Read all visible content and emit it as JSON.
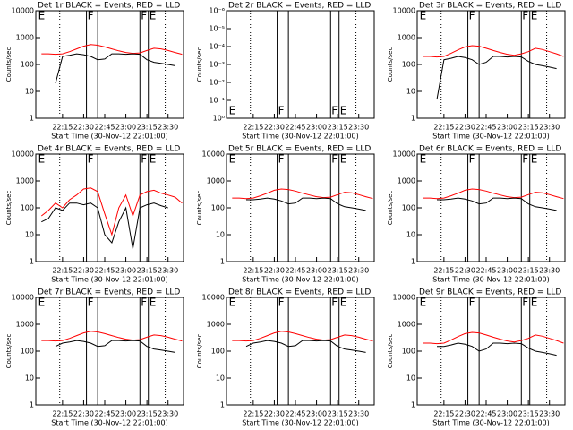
{
  "chart_data": [
    {
      "type": "line",
      "title": "Det 1r BLACK = Events, RED = LLD",
      "xlabel": "Start Time (30-Nov-12 22:01:00)",
      "ylabel": "Counts/sec",
      "x": [
        "22:00",
        "22:05",
        "22:10",
        "22:15",
        "22:20",
        "22:25",
        "22:30",
        "22:35",
        "22:40",
        "22:45",
        "22:50",
        "22:55",
        "23:00",
        "23:05",
        "23:10",
        "23:15",
        "23:20",
        "23:25",
        "23:30",
        "23:35",
        "23:40"
      ],
      "xlim": [
        "21:56",
        "23:41"
      ],
      "xticks": [
        "22:15",
        "22:30",
        "22:45",
        "23:00",
        "23:15",
        "23:30"
      ],
      "ylim": [
        1,
        10000
      ],
      "yticks": [
        1,
        10,
        100,
        1000,
        10000
      ],
      "log_y": true,
      "series": [
        {
          "color": "#ff0000",
          "values": [
            250,
            250,
            240,
            250,
            300,
            380,
            480,
            550,
            520,
            450,
            380,
            320,
            280,
            260,
            270,
            330,
            400,
            380,
            330,
            280,
            240
          ]
        },
        {
          "color": "#000000",
          "values": [
            null,
            null,
            20,
            200,
            220,
            250,
            230,
            200,
            150,
            160,
            250,
            250,
            240,
            250,
            240,
            150,
            120,
            110,
            100,
            90,
            null
          ]
        }
      ],
      "dotted_lines": [
        "22:13",
        "23:28"
      ],
      "solid_lines": [
        "22:32",
        "22:40",
        "23:10",
        "23:16"
      ],
      "annotations": [
        {
          "x": "21:57",
          "label": "E"
        },
        {
          "x": "22:32",
          "label": "F"
        },
        {
          "x": "23:10",
          "label": "F"
        },
        {
          "x": "23:16",
          "label": "E"
        }
      ],
      "annotation_position": "top"
    },
    {
      "type": "line",
      "title": "Det 2r BLACK = Events, RED = LLD",
      "xlabel": "Start Time (30-Nov-12 22:01:00)",
      "ylabel": "Counts/sec",
      "x": [],
      "xlim": [
        "21:56",
        "23:41"
      ],
      "xticks": [
        "22:15",
        "22:30",
        "22:45",
        "23:00",
        "23:15",
        "23:30"
      ],
      "ylim": [
        1,
        1e-06
      ],
      "yticks": [
        {
          "value": 1,
          "label": "10⁰"
        },
        {
          "value": 0.1,
          "label": "10⁻¹"
        },
        {
          "value": 0.01,
          "label": "10⁻²"
        },
        {
          "value": 0.001,
          "label": "10⁻³"
        },
        {
          "value": 0.0001,
          "label": "10⁻⁴"
        },
        {
          "value": 1e-05,
          "label": "10⁻⁵"
        },
        {
          "value": 1e-06,
          "label": "10⁻⁶"
        }
      ],
      "log_y": true,
      "series": [],
      "dotted_lines": [
        "22:13",
        "23:28"
      ],
      "solid_lines": [
        "22:32",
        "22:40",
        "23:10",
        "23:16"
      ],
      "annotations": [
        {
          "x": "21:57",
          "label": "E"
        },
        {
          "x": "22:32",
          "label": "F"
        },
        {
          "x": "23:10",
          "label": "F"
        },
        {
          "x": "23:16",
          "label": "E"
        }
      ],
      "annotation_position": "bottom"
    },
    {
      "type": "line",
      "title": "Det 3r BLACK = Events, RED = LLD",
      "xlabel": "Start Time (30-Nov-12 22:01:00)",
      "ylabel": "Counts/sec",
      "x": [
        "22:00",
        "22:05",
        "22:10",
        "22:15",
        "22:20",
        "22:25",
        "22:30",
        "22:35",
        "22:40",
        "22:45",
        "22:50",
        "22:55",
        "23:00",
        "23:05",
        "23:10",
        "23:15",
        "23:20",
        "23:25",
        "23:30",
        "23:35",
        "23:40"
      ],
      "xlim": [
        "21:56",
        "23:41"
      ],
      "xticks": [
        "22:15",
        "22:30",
        "22:45",
        "23:00",
        "23:15",
        "23:30"
      ],
      "ylim": [
        1,
        10000
      ],
      "yticks": [
        1,
        10,
        100,
        1000,
        10000
      ],
      "log_y": true,
      "series": [
        {
          "color": "#ff0000",
          "values": [
            200,
            200,
            190,
            200,
            260,
            350,
            450,
            500,
            480,
            400,
            330,
            280,
            240,
            220,
            250,
            300,
            400,
            360,
            300,
            250,
            200
          ]
        },
        {
          "color": "#000000",
          "values": [
            null,
            null,
            5,
            150,
            170,
            200,
            180,
            150,
            100,
            120,
            200,
            200,
            190,
            200,
            190,
            130,
            100,
            90,
            80,
            70,
            null
          ]
        }
      ],
      "dotted_lines": [
        "22:13",
        "23:28"
      ],
      "solid_lines": [
        "22:32",
        "22:40",
        "23:10",
        "23:16"
      ],
      "annotations": [
        {
          "x": "21:57",
          "label": "E"
        },
        {
          "x": "22:32",
          "label": "F"
        },
        {
          "x": "23:10",
          "label": "F"
        },
        {
          "x": "23:16",
          "label": "E"
        }
      ],
      "annotation_position": "top"
    },
    {
      "type": "line",
      "title": "Det 4r BLACK = Events, RED = LLD",
      "xlabel": "Start Time (30-Nov-12 22:01:00)",
      "ylabel": "Counts/sec",
      "x": [
        "22:00",
        "22:05",
        "22:10",
        "22:15",
        "22:20",
        "22:25",
        "22:30",
        "22:35",
        "22:40",
        "22:45",
        "22:50",
        "22:55",
        "23:00",
        "23:05",
        "23:10",
        "23:15",
        "23:20",
        "23:25",
        "23:30",
        "23:35",
        "23:40"
      ],
      "xlim": [
        "21:56",
        "23:41"
      ],
      "xticks": [
        "22:15",
        "22:30",
        "22:45",
        "23:00",
        "23:15",
        "23:30"
      ],
      "ylim": [
        1,
        10000
      ],
      "yticks": [
        1,
        10,
        100,
        1000,
        10000
      ],
      "log_y": true,
      "series": [
        {
          "color": "#ff0000",
          "values": [
            50,
            80,
            150,
            100,
            200,
            300,
            500,
            550,
            400,
            60,
            10,
            100,
            300,
            50,
            300,
            400,
            450,
            350,
            300,
            250,
            150
          ]
        },
        {
          "color": "#000000",
          "values": [
            30,
            40,
            100,
            80,
            150,
            150,
            130,
            150,
            100,
            10,
            5,
            30,
            100,
            3,
            100,
            130,
            150,
            120,
            100,
            null,
            null
          ]
        }
      ],
      "dotted_lines": [
        "22:13",
        "23:28"
      ],
      "solid_lines": [
        "22:32",
        "22:40",
        "23:10",
        "23:16"
      ],
      "annotations": [
        {
          "x": "21:57",
          "label": "E"
        },
        {
          "x": "22:32",
          "label": "F"
        },
        {
          "x": "23:10",
          "label": "F"
        },
        {
          "x": "23:16",
          "label": "E"
        }
      ],
      "annotation_position": "top"
    },
    {
      "type": "line",
      "title": "Det 5r BLACK = Events, RED = LLD",
      "xlabel": "Start Time (30-Nov-12 22:01:00)",
      "ylabel": "Counts/sec",
      "x": [
        "22:00",
        "22:05",
        "22:10",
        "22:15",
        "22:20",
        "22:25",
        "22:30",
        "22:35",
        "22:40",
        "22:45",
        "22:50",
        "22:55",
        "23:00",
        "23:05",
        "23:10",
        "23:15",
        "23:20",
        "23:25",
        "23:30",
        "23:35",
        "23:40"
      ],
      "xlim": [
        "21:56",
        "23:41"
      ],
      "xticks": [
        "22:15",
        "22:30",
        "22:45",
        "23:00",
        "23:15",
        "23:30"
      ],
      "ylim": [
        1,
        10000
      ],
      "yticks": [
        1,
        10,
        100,
        1000,
        10000
      ],
      "log_y": true,
      "series": [
        {
          "color": "#ff0000",
          "values": [
            230,
            230,
            220,
            230,
            280,
            350,
            450,
            500,
            480,
            420,
            350,
            300,
            260,
            240,
            250,
            310,
            380,
            360,
            310,
            260,
            220
          ]
        },
        {
          "color": "#000000",
          "values": [
            null,
            null,
            200,
            200,
            210,
            230,
            210,
            180,
            140,
            150,
            230,
            230,
            220,
            230,
            220,
            140,
            110,
            100,
            90,
            80,
            null
          ]
        }
      ],
      "dotted_lines": [
        "22:13",
        "23:28"
      ],
      "solid_lines": [
        "22:32",
        "22:40",
        "23:10",
        "23:16"
      ],
      "annotations": [
        {
          "x": "21:57",
          "label": "E"
        },
        {
          "x": "22:32",
          "label": "F"
        },
        {
          "x": "23:10",
          "label": "F"
        },
        {
          "x": "23:16",
          "label": "E"
        }
      ],
      "annotation_position": "top"
    },
    {
      "type": "line",
      "title": "Det 6r BLACK = Events, RED = LLD",
      "xlabel": "Start Time (30-Nov-12 22:01:00)",
      "ylabel": "Counts/sec",
      "x": [
        "22:00",
        "22:05",
        "22:10",
        "22:15",
        "22:20",
        "22:25",
        "22:30",
        "22:35",
        "22:40",
        "22:45",
        "22:50",
        "22:55",
        "23:00",
        "23:05",
        "23:10",
        "23:15",
        "23:20",
        "23:25",
        "23:30",
        "23:35",
        "23:40"
      ],
      "xlim": [
        "21:56",
        "23:41"
      ],
      "xticks": [
        "22:15",
        "22:30",
        "22:45",
        "23:00",
        "23:15",
        "23:30"
      ],
      "ylim": [
        1,
        10000
      ],
      "yticks": [
        1,
        10,
        100,
        1000,
        10000
      ],
      "log_y": true,
      "series": [
        {
          "color": "#ff0000",
          "values": [
            230,
            230,
            220,
            230,
            280,
            350,
            450,
            500,
            480,
            420,
            350,
            300,
            260,
            240,
            250,
            310,
            380,
            360,
            310,
            260,
            220
          ]
        },
        {
          "color": "#000000",
          "values": [
            null,
            null,
            200,
            200,
            210,
            230,
            210,
            180,
            140,
            150,
            230,
            230,
            220,
            230,
            220,
            140,
            110,
            100,
            90,
            80,
            null
          ]
        }
      ],
      "dotted_lines": [
        "22:13",
        "23:28"
      ],
      "solid_lines": [
        "22:32",
        "22:40",
        "23:10",
        "23:16"
      ],
      "annotations": [
        {
          "x": "21:57",
          "label": "E"
        },
        {
          "x": "22:32",
          "label": "F"
        },
        {
          "x": "23:10",
          "label": "F"
        },
        {
          "x": "23:16",
          "label": "E"
        }
      ],
      "annotation_position": "top"
    },
    {
      "type": "line",
      "title": "Det 7r BLACK = Events, RED = LLD",
      "xlabel": "Start Time (30-Nov-12 22:01:00)",
      "ylabel": "Counts/sec",
      "x": [
        "22:00",
        "22:05",
        "22:10",
        "22:15",
        "22:20",
        "22:25",
        "22:30",
        "22:35",
        "22:40",
        "22:45",
        "22:50",
        "22:55",
        "23:00",
        "23:05",
        "23:10",
        "23:15",
        "23:20",
        "23:25",
        "23:30",
        "23:35",
        "23:40"
      ],
      "xlim": [
        "21:56",
        "23:41"
      ],
      "xticks": [
        "22:15",
        "22:30",
        "22:45",
        "23:00",
        "23:15",
        "23:30"
      ],
      "ylim": [
        1,
        10000
      ],
      "yticks": [
        1,
        10,
        100,
        1000,
        10000
      ],
      "log_y": true,
      "series": [
        {
          "color": "#ff0000",
          "values": [
            250,
            250,
            240,
            250,
            300,
            380,
            480,
            550,
            520,
            450,
            380,
            320,
            280,
            260,
            270,
            330,
            400,
            380,
            330,
            280,
            240
          ]
        },
        {
          "color": "#000000",
          "values": [
            null,
            null,
            150,
            200,
            220,
            250,
            230,
            200,
            150,
            160,
            250,
            250,
            240,
            250,
            240,
            150,
            120,
            110,
            100,
            90,
            null
          ]
        }
      ],
      "dotted_lines": [
        "22:13",
        "23:28"
      ],
      "solid_lines": [
        "22:32",
        "22:40",
        "23:10",
        "23:16"
      ],
      "annotations": [
        {
          "x": "21:57",
          "label": "E"
        },
        {
          "x": "22:32",
          "label": "F"
        },
        {
          "x": "23:10",
          "label": "F"
        },
        {
          "x": "23:16",
          "label": "E"
        }
      ],
      "annotation_position": "top"
    },
    {
      "type": "line",
      "title": "Det 8r BLACK = Events, RED = LLD",
      "xlabel": "Start Time (30-Nov-12 22:01:00)",
      "ylabel": "Counts/sec",
      "x": [
        "22:00",
        "22:05",
        "22:10",
        "22:15",
        "22:20",
        "22:25",
        "22:30",
        "22:35",
        "22:40",
        "22:45",
        "22:50",
        "22:55",
        "23:00",
        "23:05",
        "23:10",
        "23:15",
        "23:20",
        "23:25",
        "23:30",
        "23:35",
        "23:40"
      ],
      "xlim": [
        "21:56",
        "23:41"
      ],
      "xticks": [
        "22:15",
        "22:30",
        "22:45",
        "23:00",
        "23:15",
        "23:30"
      ],
      "ylim": [
        1,
        10000
      ],
      "yticks": [
        1,
        10,
        100,
        1000,
        10000
      ],
      "log_y": true,
      "series": [
        {
          "color": "#ff0000",
          "values": [
            250,
            250,
            240,
            250,
            300,
            380,
            480,
            550,
            520,
            450,
            380,
            320,
            280,
            260,
            270,
            330,
            400,
            380,
            330,
            280,
            240
          ]
        },
        {
          "color": "#000000",
          "values": [
            null,
            null,
            150,
            200,
            220,
            250,
            230,
            200,
            150,
            160,
            250,
            250,
            240,
            250,
            240,
            150,
            120,
            110,
            100,
            90,
            null
          ]
        }
      ],
      "dotted_lines": [
        "22:13",
        "23:28"
      ],
      "solid_lines": [
        "22:32",
        "22:40",
        "23:10",
        "23:16"
      ],
      "annotations": [
        {
          "x": "21:57",
          "label": "E"
        },
        {
          "x": "22:32",
          "label": "F"
        },
        {
          "x": "23:10",
          "label": "F"
        },
        {
          "x": "23:16",
          "label": "E"
        }
      ],
      "annotation_position": "top"
    },
    {
      "type": "line",
      "title": "Det 9r BLACK = Events, RED = LLD",
      "xlabel": "Start Time (30-Nov-12 22:01:00)",
      "ylabel": "Counts/sec",
      "x": [
        "22:00",
        "22:05",
        "22:10",
        "22:15",
        "22:20",
        "22:25",
        "22:30",
        "22:35",
        "22:40",
        "22:45",
        "22:50",
        "22:55",
        "23:00",
        "23:05",
        "23:10",
        "23:15",
        "23:20",
        "23:25",
        "23:30",
        "23:35",
        "23:40"
      ],
      "xlim": [
        "21:56",
        "23:41"
      ],
      "xticks": [
        "22:15",
        "22:30",
        "22:45",
        "23:00",
        "23:15",
        "23:30"
      ],
      "ylim": [
        1,
        10000
      ],
      "yticks": [
        1,
        10,
        100,
        1000,
        10000
      ],
      "log_y": true,
      "series": [
        {
          "color": "#ff0000",
          "values": [
            200,
            200,
            190,
            200,
            260,
            350,
            450,
            500,
            480,
            400,
            330,
            280,
            240,
            220,
            250,
            300,
            400,
            360,
            300,
            250,
            200
          ]
        },
        {
          "color": "#000000",
          "values": [
            null,
            null,
            150,
            150,
            170,
            200,
            180,
            150,
            100,
            120,
            200,
            200,
            190,
            200,
            190,
            130,
            100,
            90,
            80,
            70,
            null
          ]
        }
      ],
      "dotted_lines": [
        "22:13",
        "23:28"
      ],
      "solid_lines": [
        "22:32",
        "22:40",
        "23:10",
        "23:16"
      ],
      "annotations": [
        {
          "x": "21:57",
          "label": "E"
        },
        {
          "x": "22:32",
          "label": "F"
        },
        {
          "x": "23:10",
          "label": "F"
        },
        {
          "x": "23:16",
          "label": "E"
        }
      ],
      "annotation_position": "top"
    }
  ]
}
